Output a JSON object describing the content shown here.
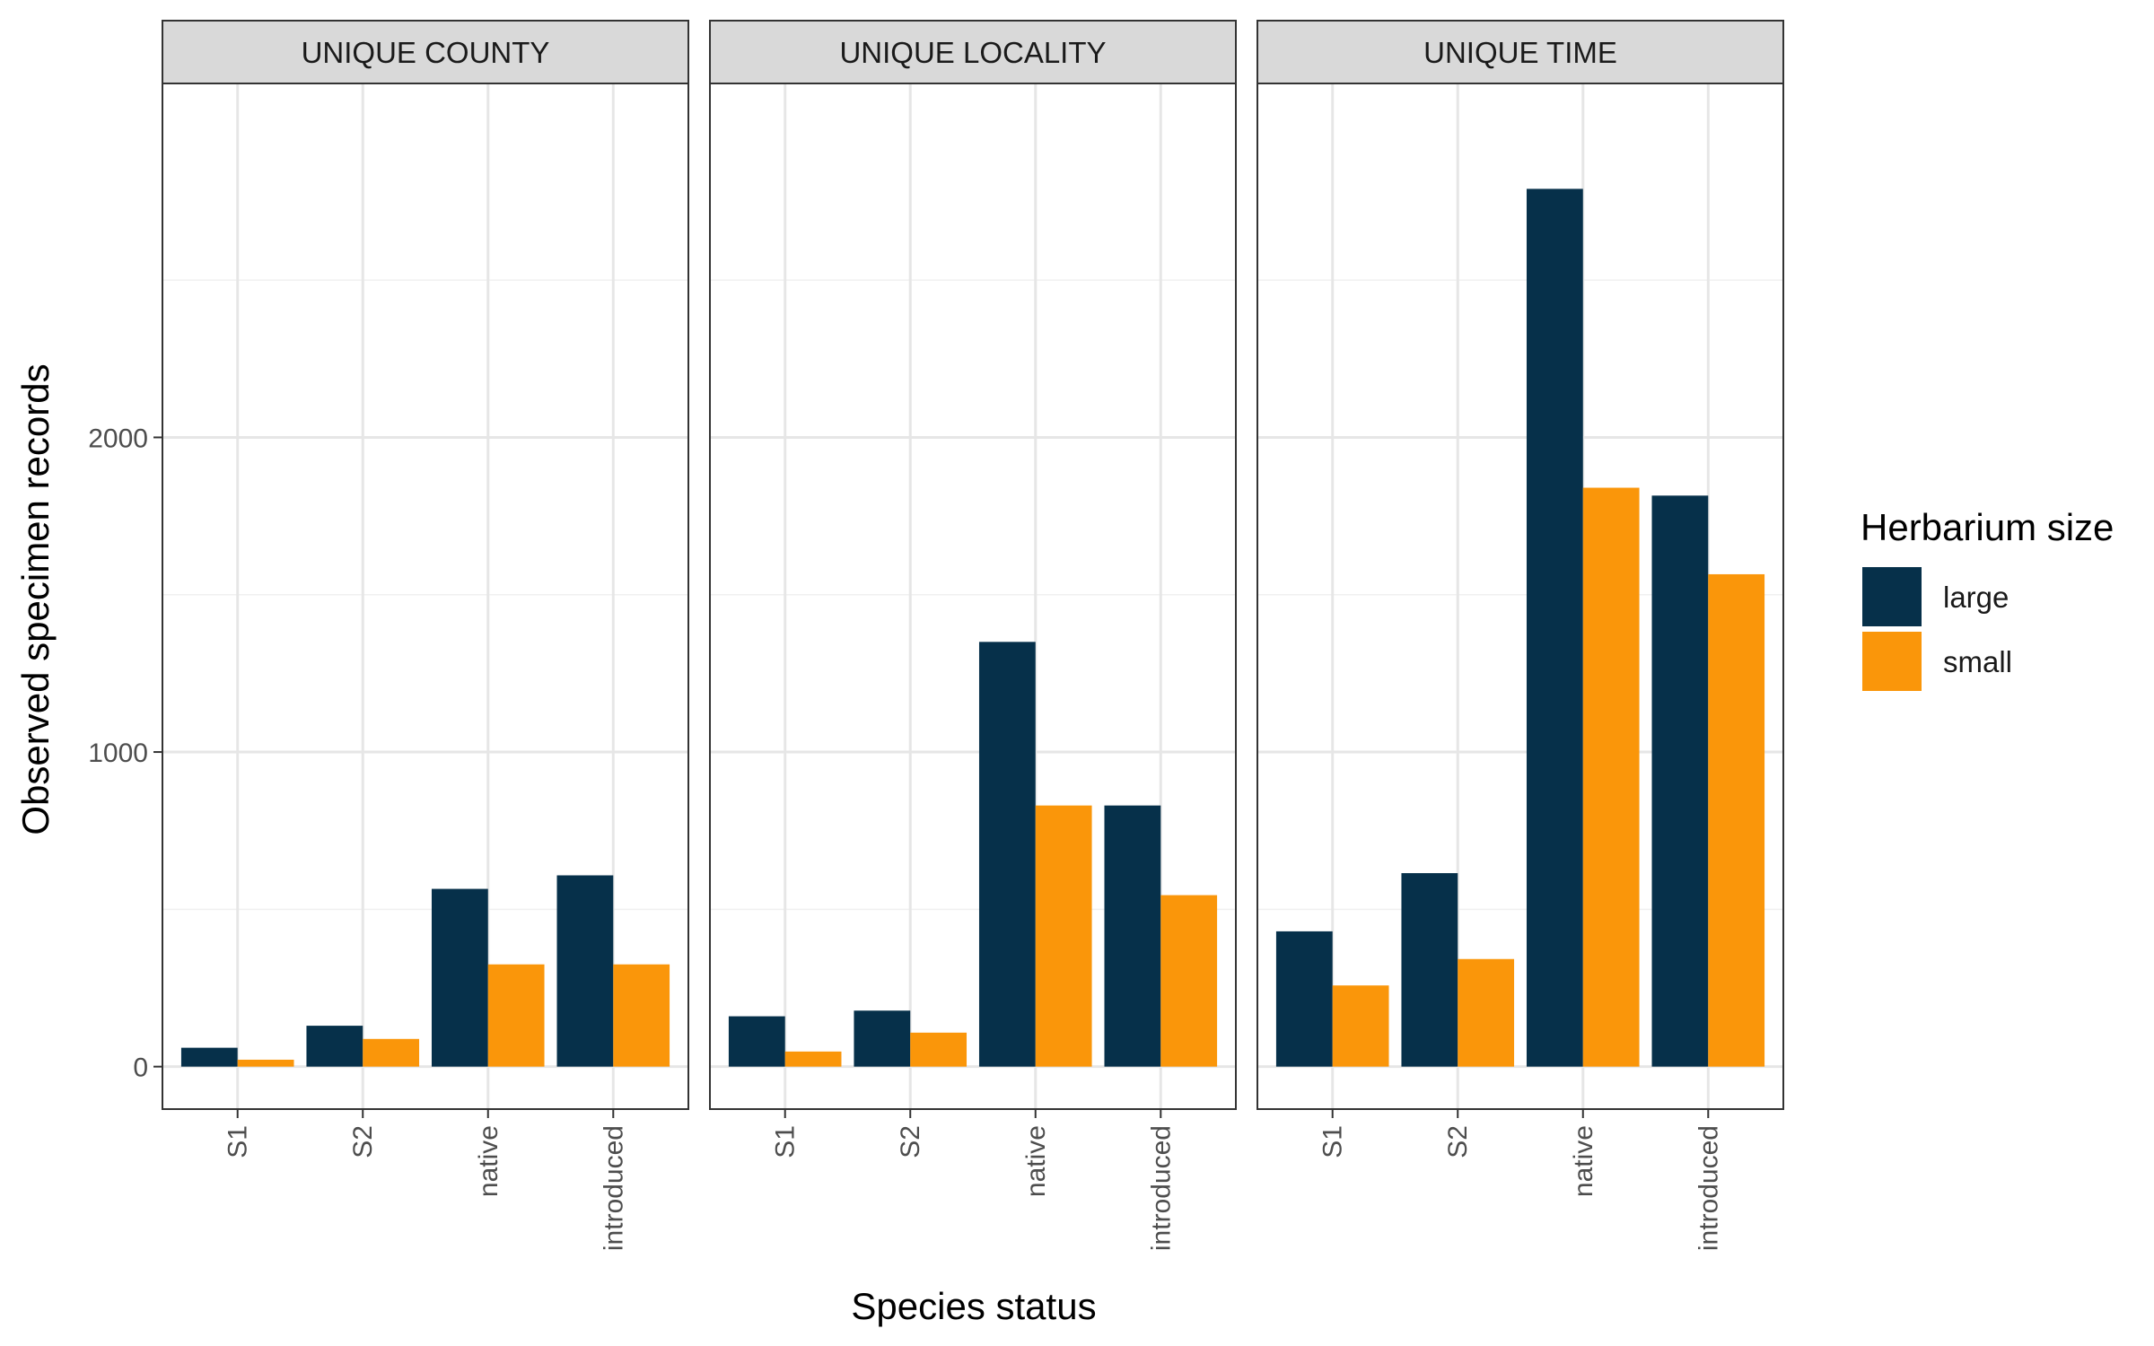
{
  "chart_data": {
    "type": "bar",
    "facets": [
      {
        "label": "UNIQUE COUNTY",
        "series": [
          {
            "name": "large",
            "values": [
              60,
              130,
              565,
              608
            ]
          },
          {
            "name": "small",
            "values": [
              22,
              88,
              325,
              325
            ]
          }
        ]
      },
      {
        "label": "UNIQUE LOCALITY",
        "series": [
          {
            "name": "large",
            "values": [
              160,
              178,
              1350,
              830
            ]
          },
          {
            "name": "small",
            "values": [
              48,
              108,
              830,
              545
            ]
          }
        ]
      },
      {
        "label": "UNIQUE TIME",
        "series": [
          {
            "name": "large",
            "values": [
              430,
              615,
              2790,
              1815
            ]
          },
          {
            "name": "small",
            "values": [
              258,
              342,
              1840,
              1565
            ]
          }
        ]
      }
    ],
    "categories": [
      "S1",
      "S2",
      "native",
      "introduced"
    ],
    "xlabel": "Species status",
    "ylabel": "Observed specimen records",
    "ylim": [
      -135,
      3125
    ],
    "yticks": [
      0,
      1000,
      2000
    ],
    "grid": true,
    "legend": {
      "title": "Herbarium size",
      "placement": "right",
      "items": [
        "large",
        "small"
      ]
    },
    "colors": {
      "large": "#06304A",
      "small": "#FA960A"
    }
  }
}
